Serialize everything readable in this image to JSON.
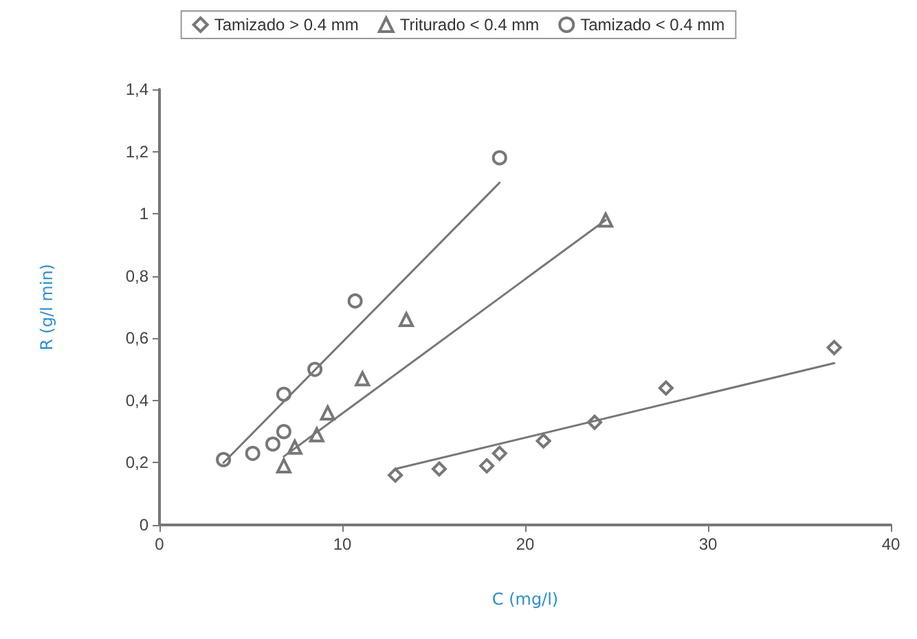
{
  "chart_data": {
    "type": "scatter",
    "xlabel": "C (mg/l)",
    "ylabel": "R (g/l min)",
    "legend": "top",
    "grid": false,
    "xlim": [
      0,
      40
    ],
    "xticks": [
      0,
      10,
      20,
      30,
      40
    ],
    "ylim": [
      0,
      1.4
    ],
    "yticks": [
      0,
      {
        "value": 0.2,
        "label": "0,2"
      },
      {
        "value": 0.4,
        "label": "0,4"
      },
      {
        "value": 0.6,
        "label": "0,6"
      },
      {
        "value": 0.8,
        "label": "0,8"
      },
      1,
      {
        "value": 1.2,
        "label": "1,2"
      },
      {
        "value": 1.4,
        "label": "1,4"
      }
    ],
    "series": [
      {
        "name": "Tamizado > 0.4 mm",
        "color": "#555555",
        "marker": "diamond",
        "x": [
          12.9,
          15.3,
          17.9,
          18.6,
          21.0,
          23.8,
          27.7,
          36.9
        ],
        "values": [
          0.16,
          0.18,
          0.19,
          0.23,
          0.27,
          0.33,
          0.44,
          0.57
        ]
      },
      {
        "name": "Triturado < 0.4 mm",
        "color": "#555555",
        "marker": "triangle",
        "x": [
          6.8,
          7.4,
          8.6,
          9.2,
          11.1,
          13.5,
          24.4
        ],
        "values": [
          0.19,
          0.25,
          0.29,
          0.36,
          0.47,
          0.66,
          0.98
        ]
      },
      {
        "name": "Tamizado < 0.4 mm",
        "color": "#555555",
        "marker": "circle",
        "x": [
          3.5,
          5.1,
          6.2,
          6.8,
          6.8,
          8.5,
          10.7,
          18.6
        ],
        "values": [
          0.21,
          0.23,
          0.26,
          0.3,
          0.42,
          0.5,
          0.72,
          1.18
        ]
      },
      {
        "type": "line",
        "color": "#777777",
        "marker": "none",
        "x": [
          12.9,
          36.9
        ],
        "values": [
          0.18,
          0.52
        ]
      },
      {
        "type": "line",
        "color": "#777777",
        "marker": "none",
        "x": [
          6.8,
          24.4
        ],
        "values": [
          0.22,
          0.98
        ]
      },
      {
        "type": "line",
        "color": "#777777",
        "marker": "none",
        "x": [
          3.5,
          18.6
        ],
        "values": [
          0.2,
          1.1
        ]
      }
    ]
  }
}
